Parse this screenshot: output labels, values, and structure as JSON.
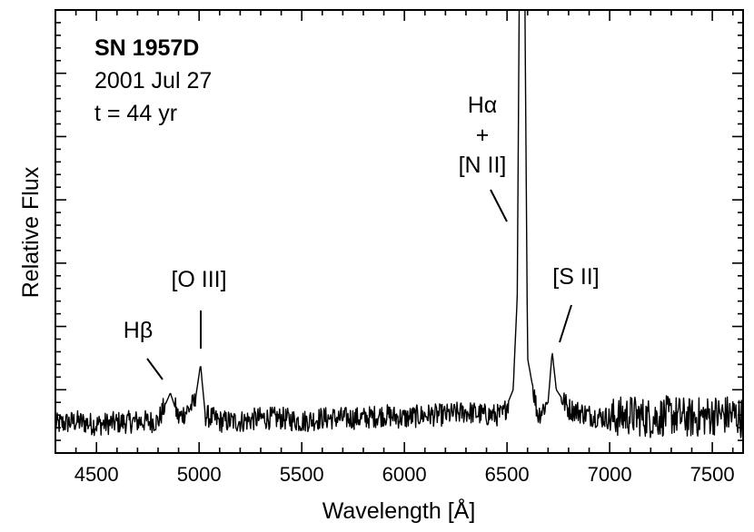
{
  "chart_data": {
    "type": "line",
    "title": "SN 1957D",
    "subtitle_lines": [
      "2001 Jul 27",
      "t = 44 yr"
    ],
    "xlabel": "Wavelength [Å]",
    "ylabel": "Relative Flux",
    "xlim": [
      4300,
      7650
    ],
    "ylim": [
      0,
      7
    ],
    "xticks": [
      4500,
      5000,
      5500,
      6000,
      6500,
      7000,
      7500
    ],
    "yticks_labeled": false,
    "grid": false,
    "legend": "none",
    "line_color": "#000000",
    "lines": [
      {
        "label": "Hβ",
        "wavelength": 4861,
        "note": "emission line"
      },
      {
        "label": "[O III]",
        "wavelength": 5007,
        "note": "emission line"
      },
      {
        "label": "Hα\n+\n[N II]",
        "wavelength": 6563,
        "note": "strong emission, off scale"
      },
      {
        "label": "[S II]",
        "wavelength": 6720,
        "note": "emission line"
      }
    ],
    "series": [
      {
        "x": [
          4300,
          4400,
          4500,
          4600,
          4700,
          4800,
          4860,
          4900,
          4950,
          4980,
          5007,
          5030,
          5100,
          5200,
          5300,
          5400,
          5500,
          5600,
          5700,
          5800,
          5900,
          6000,
          6100,
          6200,
          6300,
          6400,
          6480,
          6530,
          6550,
          6563,
          6583,
          6600,
          6650,
          6700,
          6720,
          6740,
          6800,
          6900,
          7000,
          7100,
          7200,
          7300,
          7400,
          7500,
          7600,
          7650
        ],
        "values": [
          0.45,
          0.5,
          0.45,
          0.48,
          0.5,
          0.5,
          0.95,
          0.55,
          0.7,
          0.8,
          1.4,
          0.6,
          0.5,
          0.5,
          0.55,
          0.55,
          0.5,
          0.55,
          0.55,
          0.55,
          0.6,
          0.55,
          0.6,
          0.6,
          0.65,
          0.6,
          0.6,
          1.0,
          2.5,
          9.0,
          9.0,
          1.5,
          0.6,
          0.8,
          1.6,
          1.0,
          0.7,
          0.6,
          0.55,
          0.6,
          0.55,
          0.6,
          0.55,
          0.6,
          0.6,
          0.55
        ]
      }
    ]
  }
}
